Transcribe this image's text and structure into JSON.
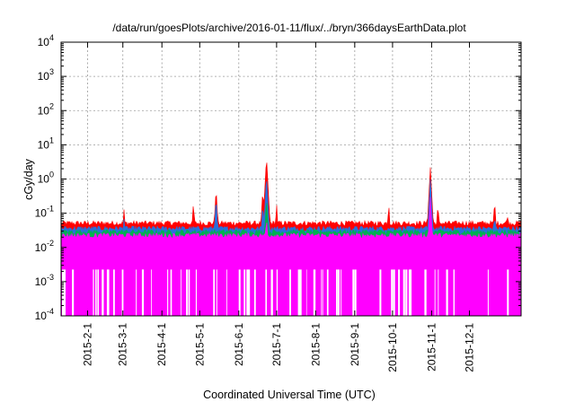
{
  "chart_data": {
    "type": "line",
    "title": "/data/run/goesPlots/archive/2016-01-11/flux/../bryn/366daysEarthData.plot",
    "xlabel": "Coordinated Universal Time (UTC)",
    "ylabel": "cGy/day",
    "yscale": "log",
    "ylim": [
      0.0001,
      10000
    ],
    "xlim": [
      "2015-01-11",
      "2016-01-11"
    ],
    "grid": true,
    "y_ticks": [
      {
        "value": 0.0001,
        "base": "10",
        "exp": "-4"
      },
      {
        "value": 0.001,
        "base": "10",
        "exp": "-3"
      },
      {
        "value": 0.01,
        "base": "10",
        "exp": "-2"
      },
      {
        "value": 0.1,
        "base": "10",
        "exp": "-1"
      },
      {
        "value": 1,
        "base": "10",
        "exp": "0"
      },
      {
        "value": 10,
        "base": "10",
        "exp": "1"
      },
      {
        "value": 100,
        "base": "10",
        "exp": "2"
      },
      {
        "value": 1000,
        "base": "10",
        "exp": "3"
      },
      {
        "value": 10000,
        "base": "10",
        "exp": "4"
      }
    ],
    "x_ticks": [
      "2015-2-1",
      "2015-3-1",
      "2015-4-1",
      "2015-5-1",
      "2015-6-1",
      "2015-7-1",
      "2015-8-1",
      "2015-9-1",
      "2015-10-1",
      "2015-11-1",
      "2015-12-1"
    ],
    "x_tick_dates": [
      "2015-02-01",
      "2015-03-01",
      "2015-04-01",
      "2015-05-01",
      "2015-06-01",
      "2015-07-01",
      "2015-08-01",
      "2015-09-01",
      "2015-10-01",
      "2015-11-01",
      "2015-12-01"
    ],
    "series": [
      {
        "color": "#ff0000",
        "baseline": 0.05,
        "peaks": [
          [
            "2015-03-02",
            0.15
          ],
          [
            "2015-04-26",
            0.22
          ],
          [
            "2015-05-14",
            0.55
          ],
          [
            "2015-06-20",
            0.5
          ],
          [
            "2015-06-23",
            4.5
          ],
          [
            "2015-07-01",
            0.2
          ],
          [
            "2015-09-28",
            0.2
          ],
          [
            "2015-10-31",
            2.2
          ],
          [
            "2015-11-06",
            0.2
          ],
          [
            "2015-12-21",
            0.25
          ],
          [
            "2015-12-31",
            0.12
          ]
        ]
      },
      {
        "color": "#2a6fdb",
        "baseline": 0.035,
        "peaks": [
          [
            "2015-03-02",
            0.08
          ],
          [
            "2015-05-14",
            0.3
          ],
          [
            "2015-06-20",
            0.2
          ],
          [
            "2015-06-23",
            1.3
          ],
          [
            "2015-10-31",
            1.0
          ],
          [
            "2015-12-21",
            0.1
          ]
        ]
      },
      {
        "color": "#00b050",
        "baseline": 0.028,
        "peaks": [
          [
            "2015-06-23",
            0.3
          ],
          [
            "2015-10-31",
            0.25
          ]
        ]
      },
      {
        "color": "#ff00ff",
        "baseline": 0.022,
        "floor": 0.0024,
        "peaks": [
          [
            "2015-06-23",
            0.08
          ],
          [
            "2015-10-31",
            0.3
          ]
        ]
      }
    ]
  }
}
